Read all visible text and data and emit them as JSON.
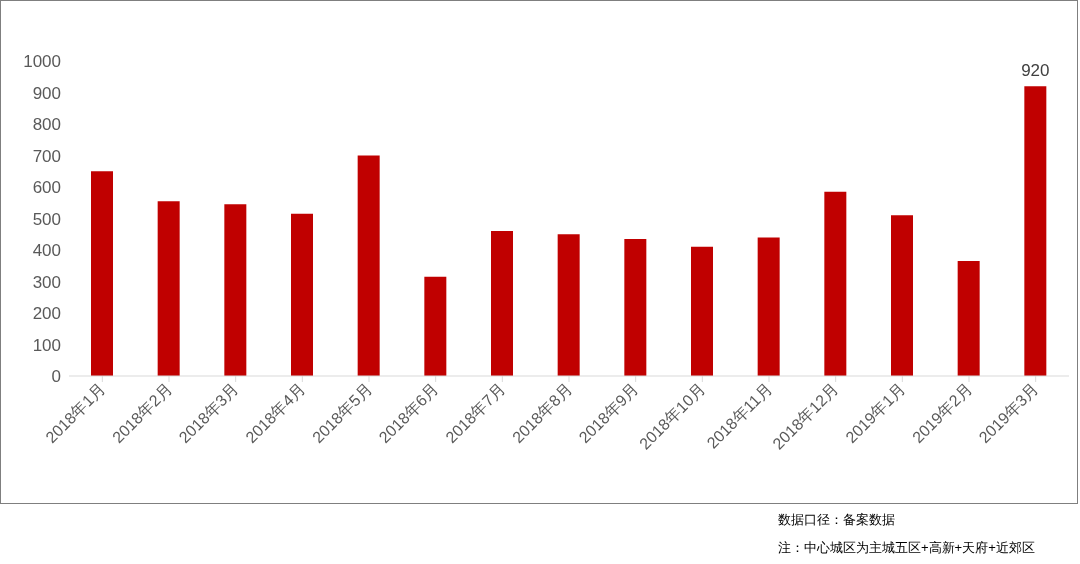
{
  "chart_data": {
    "type": "bar",
    "categories": [
      "2018年1月",
      "2018年2月",
      "2018年3月",
      "2018年4月",
      "2018年5月",
      "2018年6月",
      "2018年7月",
      "2018年8月",
      "2018年9月",
      "2018年10月",
      "2018年11月",
      "2018年12月",
      "2019年1月",
      "2019年2月",
      "2019年3月"
    ],
    "values": [
      650,
      555,
      545,
      515,
      700,
      315,
      460,
      450,
      435,
      410,
      440,
      585,
      510,
      365,
      920
    ],
    "value_labels": [
      null,
      null,
      null,
      null,
      null,
      null,
      null,
      null,
      null,
      null,
      null,
      null,
      null,
      null,
      "920"
    ],
    "color": "#c00000",
    "ylim": [
      0,
      1000
    ],
    "yticks": [
      0,
      100,
      200,
      300,
      400,
      500,
      600,
      700,
      800,
      900,
      1000
    ],
    "grid": false,
    "legend": false,
    "annotations": [
      "数据口径：备案数据",
      "注：中心城区为主城五区+高新+天府+近郊区"
    ]
  }
}
